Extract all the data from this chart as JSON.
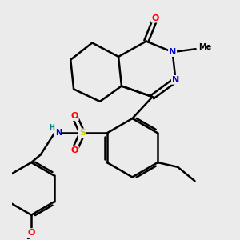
{
  "bg_color": "#ebebeb",
  "bond_color": "#000000",
  "bond_width": 1.8,
  "atom_colors": {
    "O": "#ff0000",
    "N": "#0000cc",
    "S": "#cccc00",
    "H": "#008080",
    "C": "#000000"
  },
  "font_size": 8,
  "figsize": [
    3.0,
    3.0
  ],
  "dpi": 100
}
